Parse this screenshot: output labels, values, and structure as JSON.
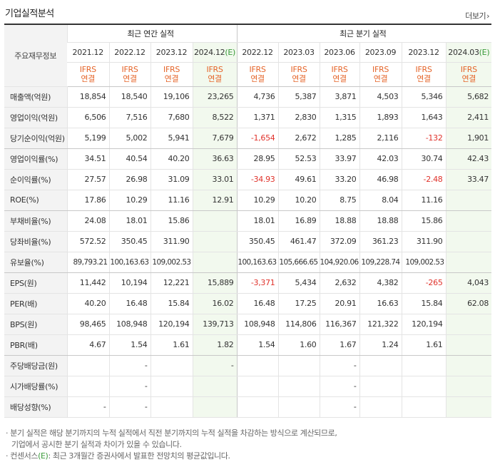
{
  "title": "기업실적분석",
  "more_label": "더보기",
  "header": {
    "row_label": "주요재무정보",
    "annual_group": "최근 연간 실적",
    "quarter_group": "최근 분기 실적",
    "periods": [
      {
        "year": "2021.12",
        "suffix": ""
      },
      {
        "year": "2022.12",
        "suffix": ""
      },
      {
        "year": "2023.12",
        "suffix": ""
      },
      {
        "year": "2024.12",
        "suffix": "(E)"
      },
      {
        "year": "2022.12",
        "suffix": ""
      },
      {
        "year": "2023.03",
        "suffix": ""
      },
      {
        "year": "2023.06",
        "suffix": ""
      },
      {
        "year": "2023.09",
        "suffix": ""
      },
      {
        "year": "2023.12",
        "suffix": ""
      },
      {
        "year": "2024.03",
        "suffix": "(E)"
      }
    ],
    "ifrs_top": "IFRS",
    "ifrs_bottom": "연결"
  },
  "rows": [
    {
      "label": "매출액(억원)",
      "values": [
        "18,854",
        "18,540",
        "19,106",
        "23,265",
        "4,736",
        "5,387",
        "3,871",
        "4,503",
        "5,346",
        "5,682"
      ]
    },
    {
      "label": "영업이익(억원)",
      "values": [
        "6,506",
        "7,516",
        "7,680",
        "8,522",
        "1,371",
        "2,830",
        "1,315",
        "1,893",
        "1,643",
        "2,411"
      ]
    },
    {
      "label": "당기순이익(억원)",
      "values": [
        "5,199",
        "5,002",
        "5,941",
        "7,679",
        "-1,654",
        "2,672",
        "1,285",
        "2,116",
        "-132",
        "1,901"
      ]
    },
    {
      "label": "영업이익률(%)",
      "values": [
        "34.51",
        "40.54",
        "40.20",
        "36.63",
        "28.95",
        "52.53",
        "33.97",
        "42.03",
        "30.74",
        "42.43"
      ]
    },
    {
      "label": "순이익률(%)",
      "values": [
        "27.57",
        "26.98",
        "31.09",
        "33.01",
        "-34.93",
        "49.61",
        "33.20",
        "46.98",
        "-2.48",
        "33.47"
      ]
    },
    {
      "label": "ROE(%)",
      "values": [
        "17.86",
        "10.29",
        "11.16",
        "12.91",
        "10.29",
        "10.20",
        "8.75",
        "8.04",
        "11.16",
        ""
      ]
    },
    {
      "label": "부채비율(%)",
      "values": [
        "24.08",
        "18.01",
        "15.86",
        "",
        "18.01",
        "16.89",
        "18.88",
        "18.88",
        "15.86",
        ""
      ]
    },
    {
      "label": "당좌비율(%)",
      "values": [
        "572.52",
        "350.45",
        "311.90",
        "",
        "350.45",
        "461.47",
        "372.09",
        "361.23",
        "311.90",
        ""
      ]
    },
    {
      "label": "유보율(%)",
      "values": [
        "89,793.21",
        "100,163.63",
        "109,002.53",
        "",
        "100,163.63",
        "105,666.65",
        "104,920.06",
        "109,228.74",
        "109,002.53",
        ""
      ]
    },
    {
      "label": "EPS(원)",
      "values": [
        "11,442",
        "10,194",
        "12,221",
        "15,889",
        "-3,371",
        "5,434",
        "2,632",
        "4,382",
        "-265",
        "4,043"
      ]
    },
    {
      "label": "PER(배)",
      "values": [
        "40.20",
        "16.48",
        "15.84",
        "16.02",
        "16.48",
        "17.25",
        "20.91",
        "16.63",
        "15.84",
        "62.08"
      ]
    },
    {
      "label": "BPS(원)",
      "values": [
        "98,465",
        "108,948",
        "120,194",
        "139,713",
        "108,948",
        "114,806",
        "116,367",
        "121,322",
        "120,194",
        ""
      ]
    },
    {
      "label": "PBR(배)",
      "values": [
        "4.67",
        "1.54",
        "1.61",
        "1.82",
        "1.54",
        "1.60",
        "1.67",
        "1.24",
        "1.61",
        ""
      ]
    },
    {
      "label": "주당배당금(원)",
      "values": [
        "",
        "-",
        "",
        "-",
        "",
        "",
        "-",
        "",
        "",
        ""
      ]
    },
    {
      "label": "시가배당률(%)",
      "values": [
        "",
        "-",
        "",
        "",
        "",
        "",
        "-",
        "",
        "",
        ""
      ]
    },
    {
      "label": "배당성향(%)",
      "values": [
        "-",
        "-",
        "",
        "",
        "",
        "",
        "-",
        "",
        "",
        ""
      ]
    }
  ],
  "notes": {
    "line1": "분기 실적은 해당 분기까지의 누적 실적에서 직전 분기까지의 누적 실적을 차감하는 방식으로 계산되므로,",
    "line2": "기업에서 공시한 분기 실적과 차이가 있을 수 있습니다.",
    "line3_prefix": "컨센서스",
    "line3_mark": "(E)",
    "line3_rest": ": 최근 3개월간 증권사에서 발표한 전망치의 평균값입니다.",
    "bullet": "·"
  },
  "colors": {
    "negative": "#e0322b",
    "ifrs": "#e5652a",
    "estimate_bg": "#f2f9ee",
    "estimate_mark": "#3a9a3a"
  }
}
